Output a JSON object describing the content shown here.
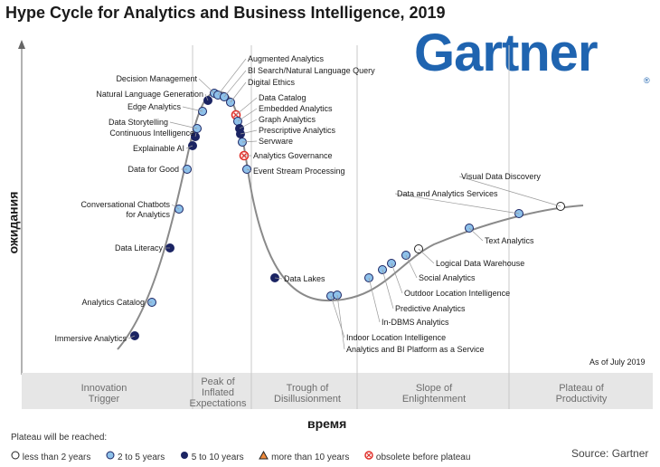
{
  "title": "Hype Cycle for Analytics and Business Intelligence, 2019",
  "logo": {
    "text": "Gartner",
    "mark": "®",
    "color": "#1f64b0"
  },
  "y_axis_label": "ожидания",
  "x_axis_label": "время",
  "as_of": "As of July 2019",
  "phases": [
    {
      "line1": "Innovation",
      "line2": "Trigger",
      "line3": ""
    },
    {
      "line1": "Peak of",
      "line2": "Inflated",
      "line3": "Expectations"
    },
    {
      "line1": "Trough of",
      "line2": "Disillusionment",
      "line3": ""
    },
    {
      "line1": "Slope of",
      "line2": "Enlightenment",
      "line3": ""
    },
    {
      "line1": "Plateau of",
      "line2": "Productivity",
      "line3": ""
    }
  ],
  "legend": {
    "title": "Plateau will be reached:",
    "items": [
      {
        "label": "less than 2 years",
        "icon": "white-circle-icon"
      },
      {
        "label": "2 to 5 years",
        "icon": "light-blue-circle-icon"
      },
      {
        "label": "5 to 10 years",
        "icon": "dark-blue-circle-icon"
      },
      {
        "label": "more than 10 years",
        "icon": "orange-triangle-icon"
      },
      {
        "label": "obsolete before plateau",
        "icon": "red-x-circle-icon"
      }
    ]
  },
  "colors": {
    "light": "#8ec1ea",
    "dark": "#1b2463",
    "white": "#ffffff",
    "obsolete": "#e0302a",
    "curve": "#8a8a8a"
  },
  "source": "Source: Gartner",
  "technologies": [
    {
      "name": "Immersive Analytics",
      "category": "dark"
    },
    {
      "name": "Analytics Catalog",
      "category": "light"
    },
    {
      "name": "Data Literacy",
      "category": "dark"
    },
    {
      "name": "Conversational Chatbots for Analytics",
      "category": "light"
    },
    {
      "name": "Data for Good",
      "category": "light"
    },
    {
      "name": "Explainable AI",
      "category": "dark"
    },
    {
      "name": "Continuous Intelligence",
      "category": "dark"
    },
    {
      "name": "Data Storytelling",
      "category": "light"
    },
    {
      "name": "Edge Analytics",
      "category": "light"
    },
    {
      "name": "Natural Language Generation",
      "category": "dark"
    },
    {
      "name": "Decision Management",
      "category": "light"
    },
    {
      "name": "Augmented Analytics",
      "category": "light"
    },
    {
      "name": "BI Search/Natural Language Query",
      "category": "light"
    },
    {
      "name": "Digital Ethics",
      "category": "light"
    },
    {
      "name": "Data Catalog",
      "category": "obsolete"
    },
    {
      "name": "Embedded Analytics",
      "category": "light"
    },
    {
      "name": "Graph Analytics",
      "category": "dark"
    },
    {
      "name": "Prescriptive Analytics",
      "category": "dark"
    },
    {
      "name": "Servware",
      "category": "light"
    },
    {
      "name": "Analytics Governance",
      "category": "obsolete"
    },
    {
      "name": "Event Stream Processing",
      "category": "light"
    },
    {
      "name": "Data Lakes",
      "category": "dark"
    },
    {
      "name": "Indoor Location Intelligence",
      "category": "light"
    },
    {
      "name": "Analytics and BI Platform as a Service",
      "category": "light"
    },
    {
      "name": "In-DBMS Analytics",
      "category": "light"
    },
    {
      "name": "Predictive Analytics",
      "category": "light"
    },
    {
      "name": "Outdoor Location Intelligence",
      "category": "light"
    },
    {
      "name": "Social Analytics",
      "category": "light"
    },
    {
      "name": "Logical Data Warehouse",
      "category": "white"
    },
    {
      "name": "Text Analytics",
      "category": "light"
    },
    {
      "name": "Data and Analytics Services",
      "category": "light"
    },
    {
      "name": "Visual Data Discovery",
      "category": "white"
    }
  ]
}
